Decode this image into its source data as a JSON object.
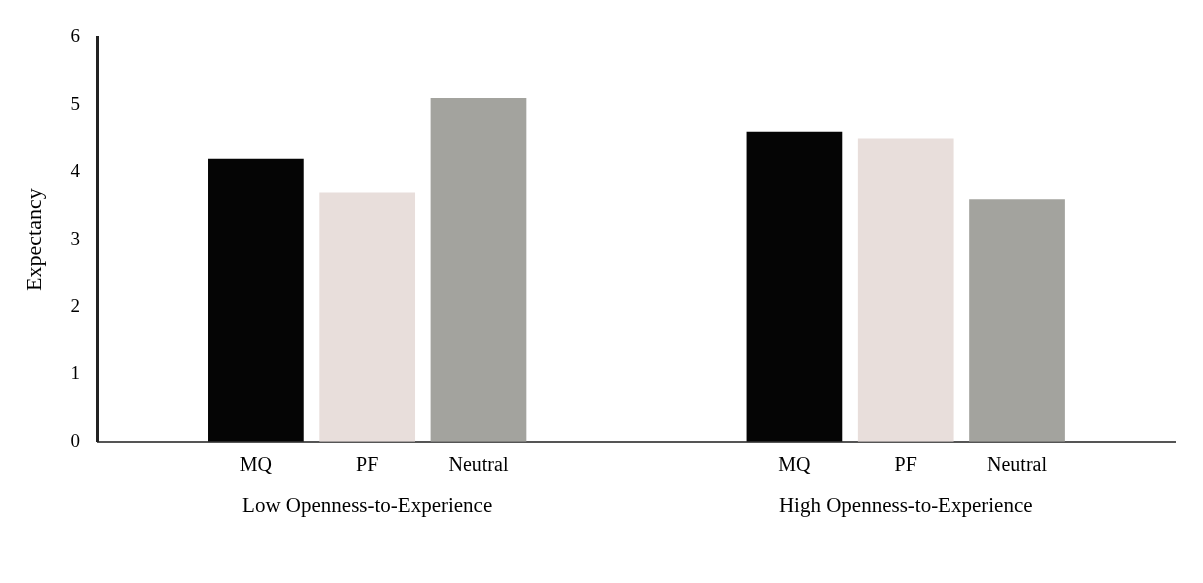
{
  "chart_data": {
    "type": "bar",
    "ylabel": "Expectancy",
    "categories": [
      "Low Openness-to-Experience",
      "High Openness-to-Experience"
    ],
    "series": [
      {
        "name": "MQ",
        "color": "#050505",
        "values": [
          4.2,
          4.6
        ]
      },
      {
        "name": "PF",
        "color": "#e8dedb",
        "values": [
          3.7,
          4.5
        ]
      },
      {
        "name": "Neutral",
        "color": "#a3a39e",
        "values": [
          5.1,
          3.6
        ]
      }
    ],
    "ylim": [
      0,
      6
    ],
    "yticks": [
      0,
      1,
      2,
      3,
      4,
      5,
      6
    ],
    "grid": false,
    "legend": false
  }
}
